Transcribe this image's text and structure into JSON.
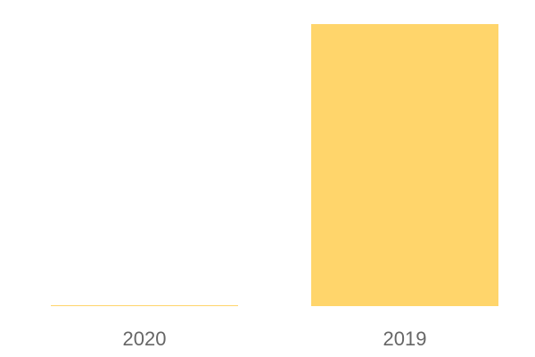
{
  "chart_data": {
    "type": "bar",
    "categories": [
      "2020",
      "2019"
    ],
    "values": [
      0.3,
      100
    ],
    "title": "",
    "xlabel": "",
    "ylabel": "",
    "ylim": [
      0,
      100
    ],
    "grid": false,
    "bar_color": "#FFD56B",
    "tick_label_color": "#666666"
  }
}
